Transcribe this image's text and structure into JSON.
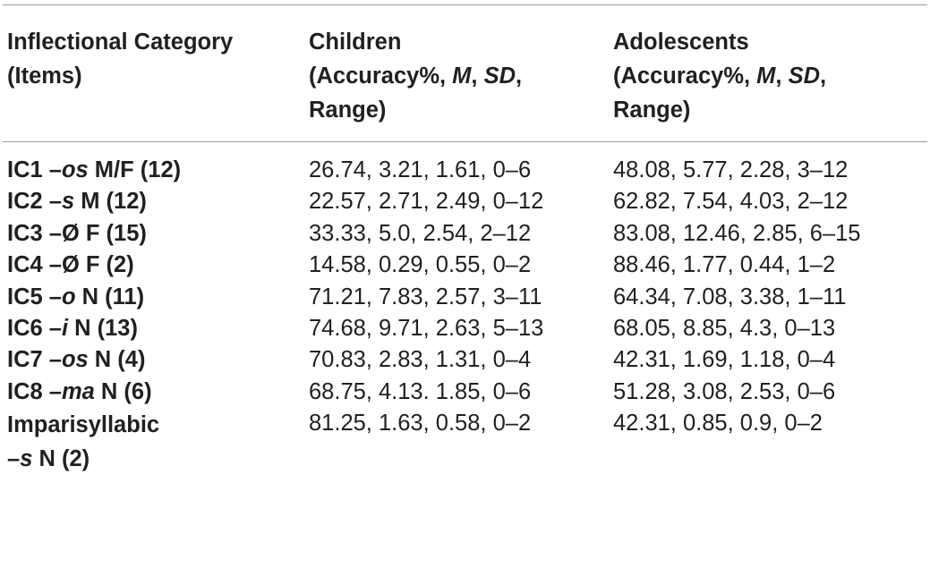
{
  "table": {
    "headers": [
      {
        "lines": [
          [
            {
              "t": "Inflectional Category",
              "i": false
            }
          ],
          [
            {
              "t": "(Items)",
              "i": false
            }
          ]
        ]
      },
      {
        "lines": [
          [
            {
              "t": "Children",
              "i": false
            }
          ],
          [
            {
              "t": "(Accuracy%, ",
              "i": false
            },
            {
              "t": "M",
              "i": true
            },
            {
              "t": ", ",
              "i": false
            },
            {
              "t": "SD",
              "i": true
            },
            {
              "t": ",",
              "i": false
            }
          ],
          [
            {
              "t": "Range)",
              "i": false
            }
          ]
        ]
      },
      {
        "lines": [
          [
            {
              "t": "Adolescents",
              "i": false
            }
          ],
          [
            {
              "t": "(Accuracy%, ",
              "i": false
            },
            {
              "t": "M",
              "i": true
            },
            {
              "t": ", ",
              "i": false
            },
            {
              "t": "SD",
              "i": true
            },
            {
              "t": ",",
              "i": false
            }
          ],
          [
            {
              "t": "Range)",
              "i": false
            }
          ]
        ]
      }
    ],
    "rows": [
      {
        "category_lines": [
          [
            {
              "t": "IC1 –",
              "i": false
            },
            {
              "t": "os",
              "i": true
            },
            {
              "t": " M/F (12)",
              "i": false
            }
          ]
        ],
        "children": "26.74, 3.21, 1.61, 0–6",
        "adolescents": "48.08, 5.77, 2.28, 3–12"
      },
      {
        "category_lines": [
          [
            {
              "t": "IC2 –",
              "i": false
            },
            {
              "t": "s",
              "i": true
            },
            {
              "t": " M (12)",
              "i": false
            }
          ]
        ],
        "children": "22.57, 2.71, 2.49, 0–12",
        "adolescents": "62.82, 7.54, 4.03, 2–12"
      },
      {
        "category_lines": [
          [
            {
              "t": "IC3 –Ø F (15)",
              "i": false
            }
          ]
        ],
        "children": "33.33, 5.0, 2.54, 2–12",
        "adolescents": "83.08, 12.46, 2.85, 6–15"
      },
      {
        "category_lines": [
          [
            {
              "t": "IC4 –Ø F (2)",
              "i": false
            }
          ]
        ],
        "children": "14.58, 0.29, 0.55, 0–2",
        "adolescents": "88.46, 1.77, 0.44, 1–2"
      },
      {
        "category_lines": [
          [
            {
              "t": "IC5 –",
              "i": false
            },
            {
              "t": "o",
              "i": true
            },
            {
              "t": " N (11)",
              "i": false
            }
          ]
        ],
        "children": "71.21, 7.83, 2.57, 3–11",
        "adolescents": "64.34, 7.08, 3.38, 1–11"
      },
      {
        "category_lines": [
          [
            {
              "t": "IC6 –",
              "i": false
            },
            {
              "t": "i",
              "i": true
            },
            {
              "t": " N (13)",
              "i": false
            }
          ]
        ],
        "children": "74.68, 9.71, 2.63, 5–13",
        "adolescents": "68.05, 8.85, 4.3, 0–13"
      },
      {
        "category_lines": [
          [
            {
              "t": "IC7 –",
              "i": false
            },
            {
              "t": "os",
              "i": true
            },
            {
              "t": " N (4)",
              "i": false
            }
          ]
        ],
        "children": "70.83, 2.83, 1.31, 0–4",
        "adolescents": "42.31, 1.69, 1.18, 0–4"
      },
      {
        "category_lines": [
          [
            {
              "t": "IC8 –",
              "i": false
            },
            {
              "t": "ma",
              "i": true
            },
            {
              "t": " N (6)",
              "i": false
            }
          ]
        ],
        "children": "68.75, 4.13. 1.85, 0–6",
        "adolescents": "51.28, 3.08, 2.53, 0–6"
      },
      {
        "category_lines": [
          [
            {
              "t": "Imparisyllabic",
              "i": false
            }
          ],
          [
            {
              "t": "–",
              "i": false
            },
            {
              "t": "s",
              "i": true
            },
            {
              "t": " N (2)",
              "i": false
            }
          ]
        ],
        "children": "81.25, 1.63, 0.58, 0–2",
        "adolescents": "42.31, 0.85, 0.9, 0–2"
      }
    ]
  }
}
